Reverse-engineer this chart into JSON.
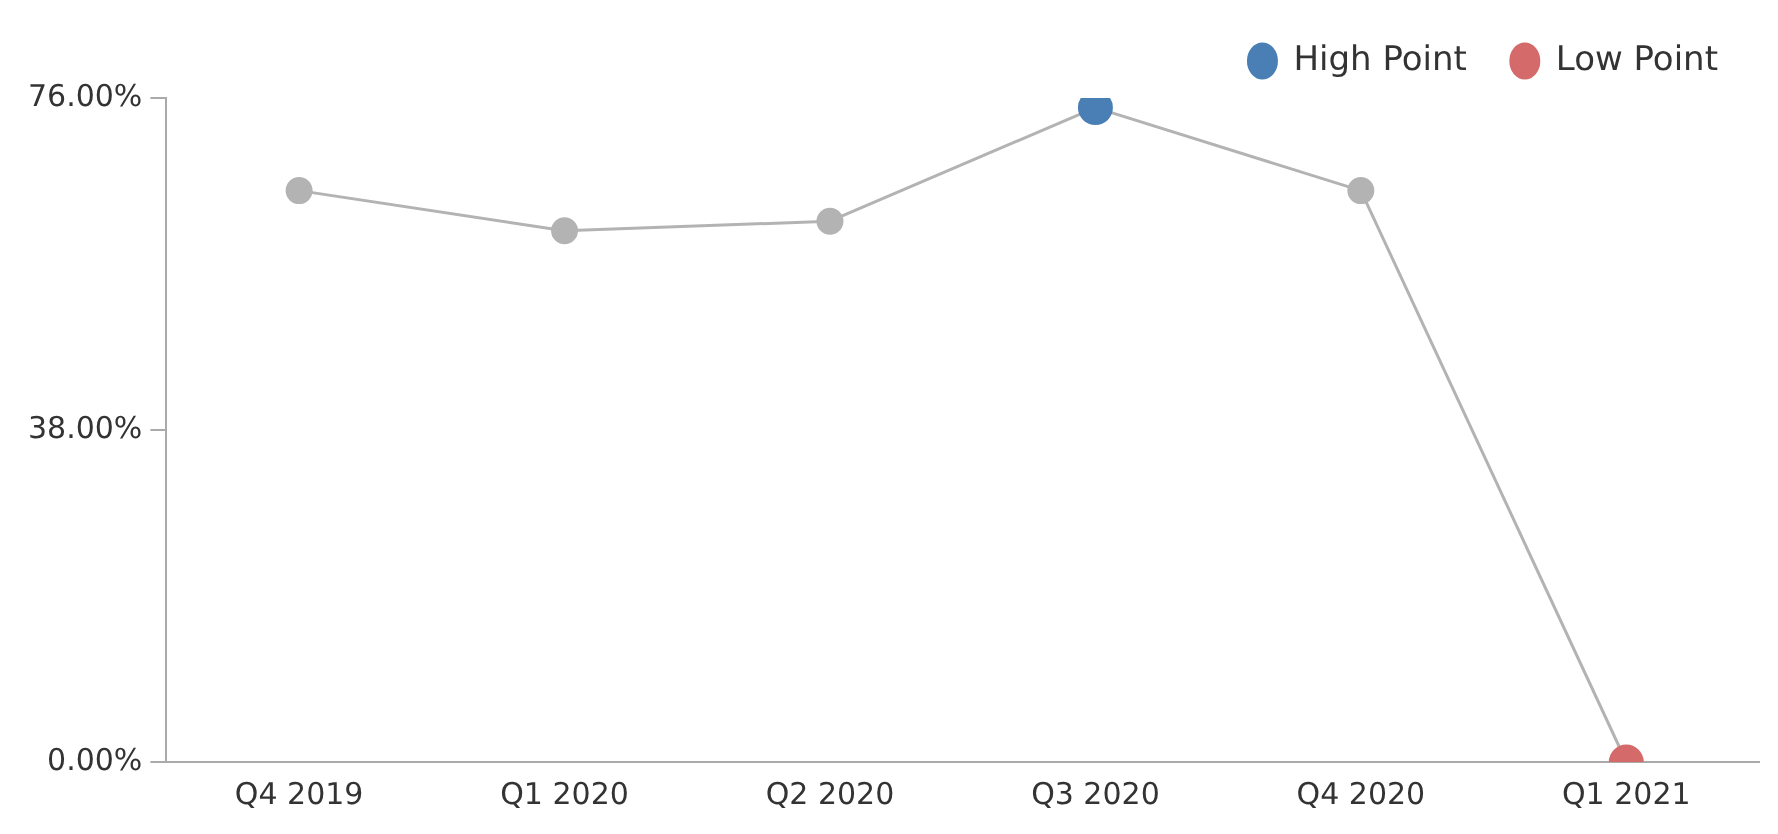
{
  "chart_data": {
    "type": "line",
    "categories": [
      "Q4 2019",
      "Q1 2020",
      "Q2 2020",
      "Q3 2020",
      "Q4 2020",
      "Q1 2021"
    ],
    "series": [
      {
        "color": "#b3b3b3",
        "values": [
          65.4,
          60.8,
          61.9,
          74.9,
          65.4,
          0
        ]
      },
      {
        "type": "scatter",
        "name": "High Point",
        "color": "#4a7fb5",
        "x": [
          "Q3 2020"
        ],
        "values": [
          74.9
        ]
      },
      {
        "type": "scatter",
        "name": "Low Point",
        "color": "#d46a6a",
        "x": [
          "Q1 2021"
        ],
        "values": [
          0
        ]
      }
    ],
    "ylim": [
      0,
      76
    ],
    "yticks": [
      {
        "value": 0,
        "label": "0.00%"
      },
      {
        "value": 38,
        "label": "38.00%"
      },
      {
        "value": 76,
        "label": "76.00%"
      }
    ],
    "grid": false,
    "legend": "top right",
    "marker": "circle",
    "line_style": "solid"
  }
}
